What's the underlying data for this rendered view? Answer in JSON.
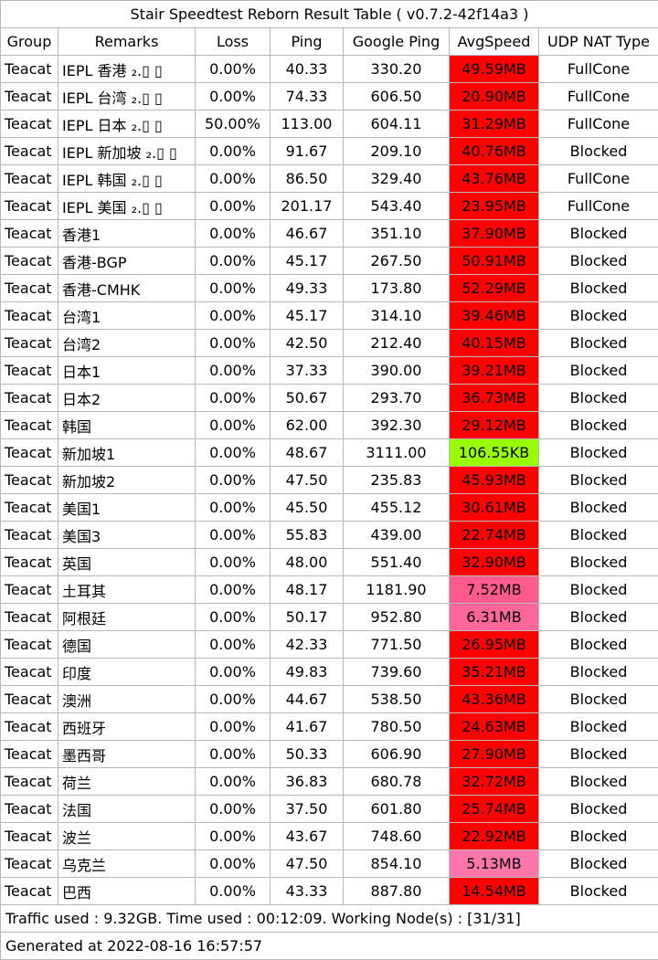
{
  "title": "Stair Speedtest Reborn Result Table ( v0.7.2-42f14a3 )",
  "headers": [
    "Group",
    "Remarks",
    "Loss",
    "Ping",
    "Google Ping",
    "AvgSpeed",
    "UDP NAT Type"
  ],
  "colors": {
    "speed_high": "#ff0000",
    "speed_mid": "#ff6699",
    "speed_mid_light": "#ff77aa",
    "speed_low": "#99ff00",
    "border": "#b8b8b8"
  },
  "rows": [
    {
      "group": "Teacat",
      "remarks": "IEPL 香港 ₂.▯ ▯",
      "loss": "0.00%",
      "ping": "40.33",
      "google_ping": "330.20",
      "avg_speed": "49.59MB",
      "speed_color": "#ff0000",
      "nat": "FullCone"
    },
    {
      "group": "Teacat",
      "remarks": "IEPL 台湾 ₂.▯ ▯",
      "loss": "0.00%",
      "ping": "74.33",
      "google_ping": "606.50",
      "avg_speed": "20.90MB",
      "speed_color": "#ff0000",
      "nat": "FullCone"
    },
    {
      "group": "Teacat",
      "remarks": "IEPL 日本 ₂.▯ ▯",
      "loss": "50.00%",
      "ping": "113.00",
      "google_ping": "604.11",
      "avg_speed": "31.29MB",
      "speed_color": "#ff0000",
      "nat": "FullCone"
    },
    {
      "group": "Teacat",
      "remarks": "IEPL 新加坡 ₂.▯ ▯",
      "loss": "0.00%",
      "ping": "91.67",
      "google_ping": "209.10",
      "avg_speed": "40.76MB",
      "speed_color": "#ff0000",
      "nat": "Blocked"
    },
    {
      "group": "Teacat",
      "remarks": "IEPL 韩国 ₂.▯ ▯",
      "loss": "0.00%",
      "ping": "86.50",
      "google_ping": "329.40",
      "avg_speed": "43.76MB",
      "speed_color": "#ff0000",
      "nat": "FullCone"
    },
    {
      "group": "Teacat",
      "remarks": "IEPL 美国 ₂.▯ ▯",
      "loss": "0.00%",
      "ping": "201.17",
      "google_ping": "543.40",
      "avg_speed": "23.95MB",
      "speed_color": "#ff0000",
      "nat": "FullCone"
    },
    {
      "group": "Teacat",
      "remarks": "香港1",
      "loss": "0.00%",
      "ping": "46.67",
      "google_ping": "351.10",
      "avg_speed": "37.90MB",
      "speed_color": "#ff0000",
      "nat": "Blocked"
    },
    {
      "group": "Teacat",
      "remarks": "香港-BGP",
      "loss": "0.00%",
      "ping": "45.17",
      "google_ping": "267.50",
      "avg_speed": "50.91MB",
      "speed_color": "#ff0000",
      "nat": "Blocked"
    },
    {
      "group": "Teacat",
      "remarks": "香港-CMHK",
      "loss": "0.00%",
      "ping": "49.33",
      "google_ping": "173.80",
      "avg_speed": "52.29MB",
      "speed_color": "#ff0000",
      "nat": "Blocked"
    },
    {
      "group": "Teacat",
      "remarks": "台湾1",
      "loss": "0.00%",
      "ping": "45.17",
      "google_ping": "314.10",
      "avg_speed": "39.46MB",
      "speed_color": "#ff0000",
      "nat": "Blocked"
    },
    {
      "group": "Teacat",
      "remarks": "台湾2",
      "loss": "0.00%",
      "ping": "42.50",
      "google_ping": "212.40",
      "avg_speed": "40.15MB",
      "speed_color": "#ff0000",
      "nat": "Blocked"
    },
    {
      "group": "Teacat",
      "remarks": "日本1",
      "loss": "0.00%",
      "ping": "37.33",
      "google_ping": "390.00",
      "avg_speed": "39.21MB",
      "speed_color": "#ff0000",
      "nat": "Blocked"
    },
    {
      "group": "Teacat",
      "remarks": "日本2",
      "loss": "0.00%",
      "ping": "50.67",
      "google_ping": "293.70",
      "avg_speed": "36.73MB",
      "speed_color": "#ff0000",
      "nat": "Blocked"
    },
    {
      "group": "Teacat",
      "remarks": "韩国",
      "loss": "0.00%",
      "ping": "62.00",
      "google_ping": "392.30",
      "avg_speed": "29.12MB",
      "speed_color": "#ff0000",
      "nat": "Blocked"
    },
    {
      "group": "Teacat",
      "remarks": "新加坡1",
      "loss": "0.00%",
      "ping": "48.67",
      "google_ping": "3111.00",
      "avg_speed": "106.55KB",
      "speed_color": "#99ff00",
      "nat": "Blocked"
    },
    {
      "group": "Teacat",
      "remarks": "新加坡2",
      "loss": "0.00%",
      "ping": "47.50",
      "google_ping": "235.83",
      "avg_speed": "45.93MB",
      "speed_color": "#ff0000",
      "nat": "Blocked"
    },
    {
      "group": "Teacat",
      "remarks": "美国1",
      "loss": "0.00%",
      "ping": "45.50",
      "google_ping": "455.12",
      "avg_speed": "30.61MB",
      "speed_color": "#ff0000",
      "nat": "Blocked"
    },
    {
      "group": "Teacat",
      "remarks": "美国3",
      "loss": "0.00%",
      "ping": "55.83",
      "google_ping": "439.00",
      "avg_speed": "22.74MB",
      "speed_color": "#ff0000",
      "nat": "Blocked"
    },
    {
      "group": "Teacat",
      "remarks": "英国",
      "loss": "0.00%",
      "ping": "48.00",
      "google_ping": "551.40",
      "avg_speed": "32.90MB",
      "speed_color": "#ff0000",
      "nat": "Blocked"
    },
    {
      "group": "Teacat",
      "remarks": "土耳其",
      "loss": "0.00%",
      "ping": "48.17",
      "google_ping": "1181.90",
      "avg_speed": "7.52MB",
      "speed_color": "#ff5c8d",
      "nat": "Blocked"
    },
    {
      "group": "Teacat",
      "remarks": "阿根廷",
      "loss": "0.00%",
      "ping": "50.17",
      "google_ping": "952.80",
      "avg_speed": "6.31MB",
      "speed_color": "#ff6699",
      "nat": "Blocked"
    },
    {
      "group": "Teacat",
      "remarks": "德国",
      "loss": "0.00%",
      "ping": "42.33",
      "google_ping": "771.50",
      "avg_speed": "26.95MB",
      "speed_color": "#ff0000",
      "nat": "Blocked"
    },
    {
      "group": "Teacat",
      "remarks": "印度",
      "loss": "0.00%",
      "ping": "49.83",
      "google_ping": "739.60",
      "avg_speed": "35.21MB",
      "speed_color": "#ff0000",
      "nat": "Blocked"
    },
    {
      "group": "Teacat",
      "remarks": "澳洲",
      "loss": "0.00%",
      "ping": "44.67",
      "google_ping": "538.50",
      "avg_speed": "43.36MB",
      "speed_color": "#ff0000",
      "nat": "Blocked"
    },
    {
      "group": "Teacat",
      "remarks": "西班牙",
      "loss": "0.00%",
      "ping": "41.67",
      "google_ping": "780.50",
      "avg_speed": "24.63MB",
      "speed_color": "#ff0000",
      "nat": "Blocked"
    },
    {
      "group": "Teacat",
      "remarks": "墨西哥",
      "loss": "0.00%",
      "ping": "50.33",
      "google_ping": "606.90",
      "avg_speed": "27.90MB",
      "speed_color": "#ff0000",
      "nat": "Blocked"
    },
    {
      "group": "Teacat",
      "remarks": "荷兰",
      "loss": "0.00%",
      "ping": "36.83",
      "google_ping": "680.78",
      "avg_speed": "32.72MB",
      "speed_color": "#ff0000",
      "nat": "Blocked"
    },
    {
      "group": "Teacat",
      "remarks": "法国",
      "loss": "0.00%",
      "ping": "37.50",
      "google_ping": "601.80",
      "avg_speed": "25.74MB",
      "speed_color": "#ff0000",
      "nat": "Blocked"
    },
    {
      "group": "Teacat",
      "remarks": "波兰",
      "loss": "0.00%",
      "ping": "43.67",
      "google_ping": "748.60",
      "avg_speed": "22.92MB",
      "speed_color": "#ff0000",
      "nat": "Blocked"
    },
    {
      "group": "Teacat",
      "remarks": "乌克兰",
      "loss": "0.00%",
      "ping": "47.50",
      "google_ping": "854.10",
      "avg_speed": "5.13MB",
      "speed_color": "#ff77aa",
      "nat": "Blocked"
    },
    {
      "group": "Teacat",
      "remarks": "巴西",
      "loss": "0.00%",
      "ping": "43.33",
      "google_ping": "887.80",
      "avg_speed": "14.54MB",
      "speed_color": "#ff0000",
      "nat": "Blocked"
    }
  ],
  "footer": {
    "traffic": "Traffic used : 9.32GB. Time used : 00:12:09. Working Node(s) : [31/31]",
    "generated": "Generated at 2022-08-16 16:57:57"
  }
}
